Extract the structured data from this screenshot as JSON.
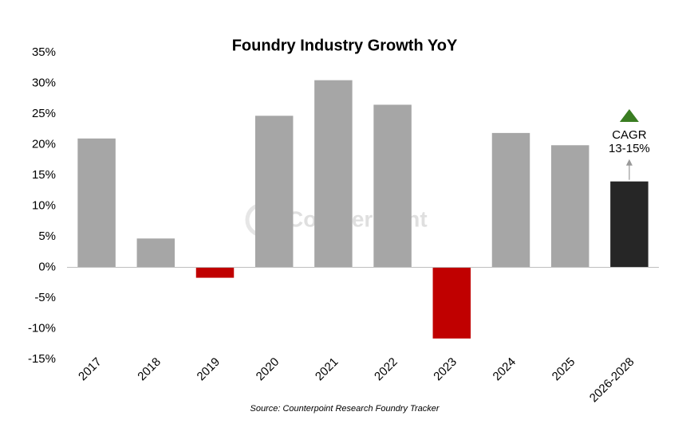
{
  "chart_data": {
    "type": "bar",
    "title": "Foundry Industry Growth YoY",
    "categories": [
      "2017",
      "2018",
      "2019",
      "2020",
      "2021",
      "2022",
      "2023",
      "2024",
      "2025",
      "2026-2028"
    ],
    "values": [
      21.0,
      4.7,
      -1.7,
      24.7,
      30.5,
      26.5,
      -11.6,
      21.9,
      19.9,
      14.0
    ],
    "colors": [
      "#a6a6a6",
      "#a6a6a6",
      "#c00000",
      "#a6a6a6",
      "#a6a6a6",
      "#a6a6a6",
      "#c00000",
      "#a6a6a6",
      "#a6a6a6",
      "#262626"
    ],
    "ylim": [
      -15,
      35
    ],
    "yticks": [
      {
        "value": -15,
        "label": "-15%"
      },
      {
        "value": -10,
        "label": "-10%"
      },
      {
        "value": -5,
        "label": "-5%"
      },
      {
        "value": 0,
        "label": "0%"
      },
      {
        "value": 5,
        "label": "5%"
      },
      {
        "value": 10,
        "label": "10%"
      },
      {
        "value": 15,
        "label": "15%"
      },
      {
        "value": 20,
        "label": "20%"
      },
      {
        "value": 25,
        "label": "25%"
      },
      {
        "value": 30,
        "label": "30%"
      },
      {
        "value": 35,
        "label": "35%"
      }
    ],
    "grid": false,
    "annotation": [
      "CAGR",
      "13-15%"
    ],
    "watermark": "Counterpoint",
    "source": "Source: Counterpoint Research Foundry Tracker"
  }
}
